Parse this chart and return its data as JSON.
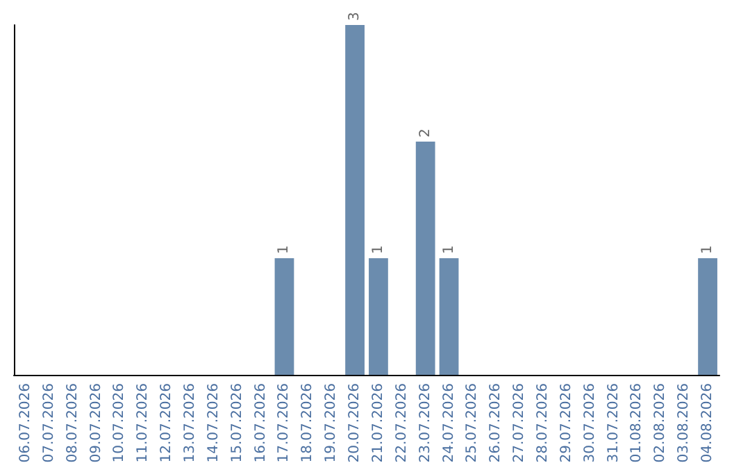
{
  "chart_data": {
    "type": "bar",
    "categories": [
      "06.07.2026",
      "07.07.2026",
      "08.07.2026",
      "09.07.2026",
      "10.07.2026",
      "11.07.2026",
      "12.07.2026",
      "13.07.2026",
      "14.07.2026",
      "15.07.2026",
      "16.07.2026",
      "17.07.2026",
      "18.07.2026",
      "19.07.2026",
      "20.07.2026",
      "21.07.2026",
      "22.07.2026",
      "23.07.2026",
      "24.07.2026",
      "25.07.2026",
      "26.07.2026",
      "27.07.2026",
      "28.07.2026",
      "29.07.2026",
      "30.07.2026",
      "31.07.2026",
      "01.08.2026",
      "02.08.2026",
      "03.08.2026",
      "04.08.2026"
    ],
    "values": [
      0,
      0,
      0,
      0,
      0,
      0,
      0,
      0,
      0,
      0,
      0,
      1,
      0,
      0,
      3,
      1,
      0,
      2,
      1,
      0,
      0,
      0,
      0,
      0,
      0,
      0,
      0,
      0,
      0,
      1
    ],
    "value_labels": [
      null,
      null,
      null,
      null,
      null,
      null,
      null,
      null,
      null,
      null,
      null,
      "1",
      null,
      null,
      "3",
      "1",
      null,
      "2",
      "1",
      null,
      null,
      null,
      null,
      null,
      null,
      null,
      null,
      null,
      null,
      "1"
    ],
    "color": "#6b8cae",
    "tick_labels": "x"
  }
}
